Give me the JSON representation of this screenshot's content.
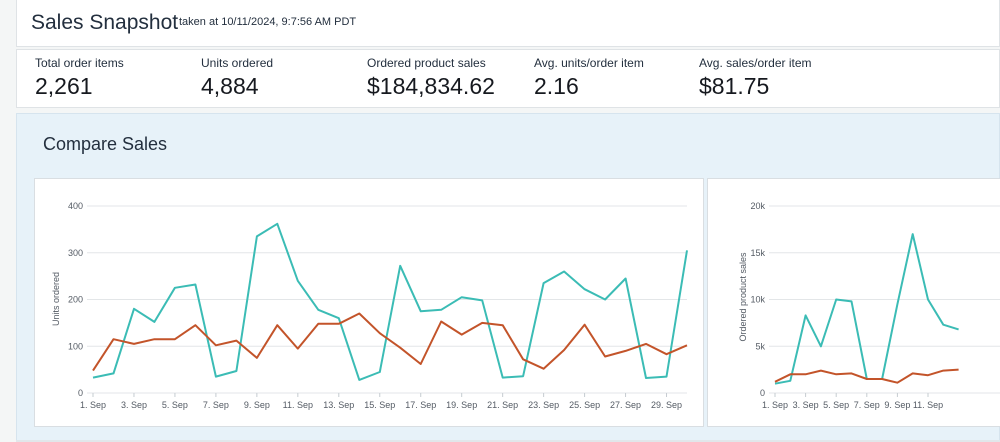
{
  "header": {
    "title": "Sales Snapshot",
    "taken_at": "taken at 10/11/2024, 9:7:56 AM PDT"
  },
  "metrics": [
    {
      "label": "Total order items",
      "value": "2,261"
    },
    {
      "label": "Units ordered",
      "value": "4,884"
    },
    {
      "label": "Ordered product sales",
      "value": "$184,834.62"
    },
    {
      "label": "Avg. units/order item",
      "value": "2.16"
    },
    {
      "label": "Avg. sales/order item",
      "value": "$81.75"
    }
  ],
  "compare": {
    "title": "Compare Sales"
  },
  "colors": {
    "teal": "#3bbcb5",
    "rust": "#c3542a",
    "grid": "#e3e6e8"
  },
  "chart_data": [
    {
      "type": "line",
      "ylabel": "Units ordered",
      "ylim": [
        0,
        400
      ],
      "yticks": [
        "0",
        "100",
        "200",
        "300",
        "400"
      ],
      "xtick_labels": [
        "1. Sep",
        "3. Sep",
        "5. Sep",
        "7. Sep",
        "9. Sep",
        "11. Sep",
        "13. Sep",
        "15. Sep",
        "17. Sep",
        "19. Sep",
        "21. Sep",
        "23. Sep",
        "25. Sep",
        "27. Sep",
        "29. Sep"
      ],
      "x": [
        1,
        2,
        3,
        4,
        5,
        6,
        7,
        8,
        9,
        10,
        11,
        12,
        13,
        14,
        15,
        16,
        17,
        18,
        19,
        20,
        21,
        22,
        23,
        24,
        25,
        26,
        27,
        28,
        29,
        30
      ],
      "grid": true,
      "series": [
        {
          "color": "#3bbcb5",
          "values": [
            33,
            42,
            180,
            152,
            225,
            232,
            35,
            47,
            335,
            362,
            240,
            178,
            160,
            28,
            45,
            272,
            175,
            178,
            205,
            198,
            33,
            36,
            235,
            260,
            222,
            200,
            245,
            32,
            35,
            305
          ]
        },
        {
          "color": "#c3542a",
          "values": [
            48,
            115,
            105,
            115,
            115,
            145,
            102,
            112,
            75,
            145,
            95,
            148,
            148,
            170,
            128,
            97,
            62,
            153,
            125,
            150,
            145,
            72,
            52,
            92,
            146,
            78,
            90,
            105,
            83,
            102
          ]
        }
      ]
    },
    {
      "type": "line",
      "ylabel": "Ordered product sales",
      "ylim": [
        0,
        20000
      ],
      "yticks": [
        "0",
        "5k",
        "10k",
        "15k",
        "20k"
      ],
      "xtick_labels": [
        "1. Sep",
        "3. Sep",
        "5. Sep",
        "7. Sep",
        "9. Sep",
        "11. Sep"
      ],
      "x": [
        1,
        2,
        3,
        4,
        5,
        6,
        7,
        8,
        9,
        10,
        11,
        12,
        13
      ],
      "grid": true,
      "series": [
        {
          "color": "#3bbcb5",
          "values": [
            1000,
            1300,
            8300,
            5000,
            10000,
            9800,
            1500,
            1500,
            9500,
            17000,
            10000,
            7300,
            6800
          ]
        },
        {
          "color": "#c3542a",
          "values": [
            1200,
            2000,
            2000,
            2400,
            2000,
            2100,
            1500,
            1500,
            1100,
            2100,
            1900,
            2400,
            2500
          ]
        }
      ]
    }
  ]
}
